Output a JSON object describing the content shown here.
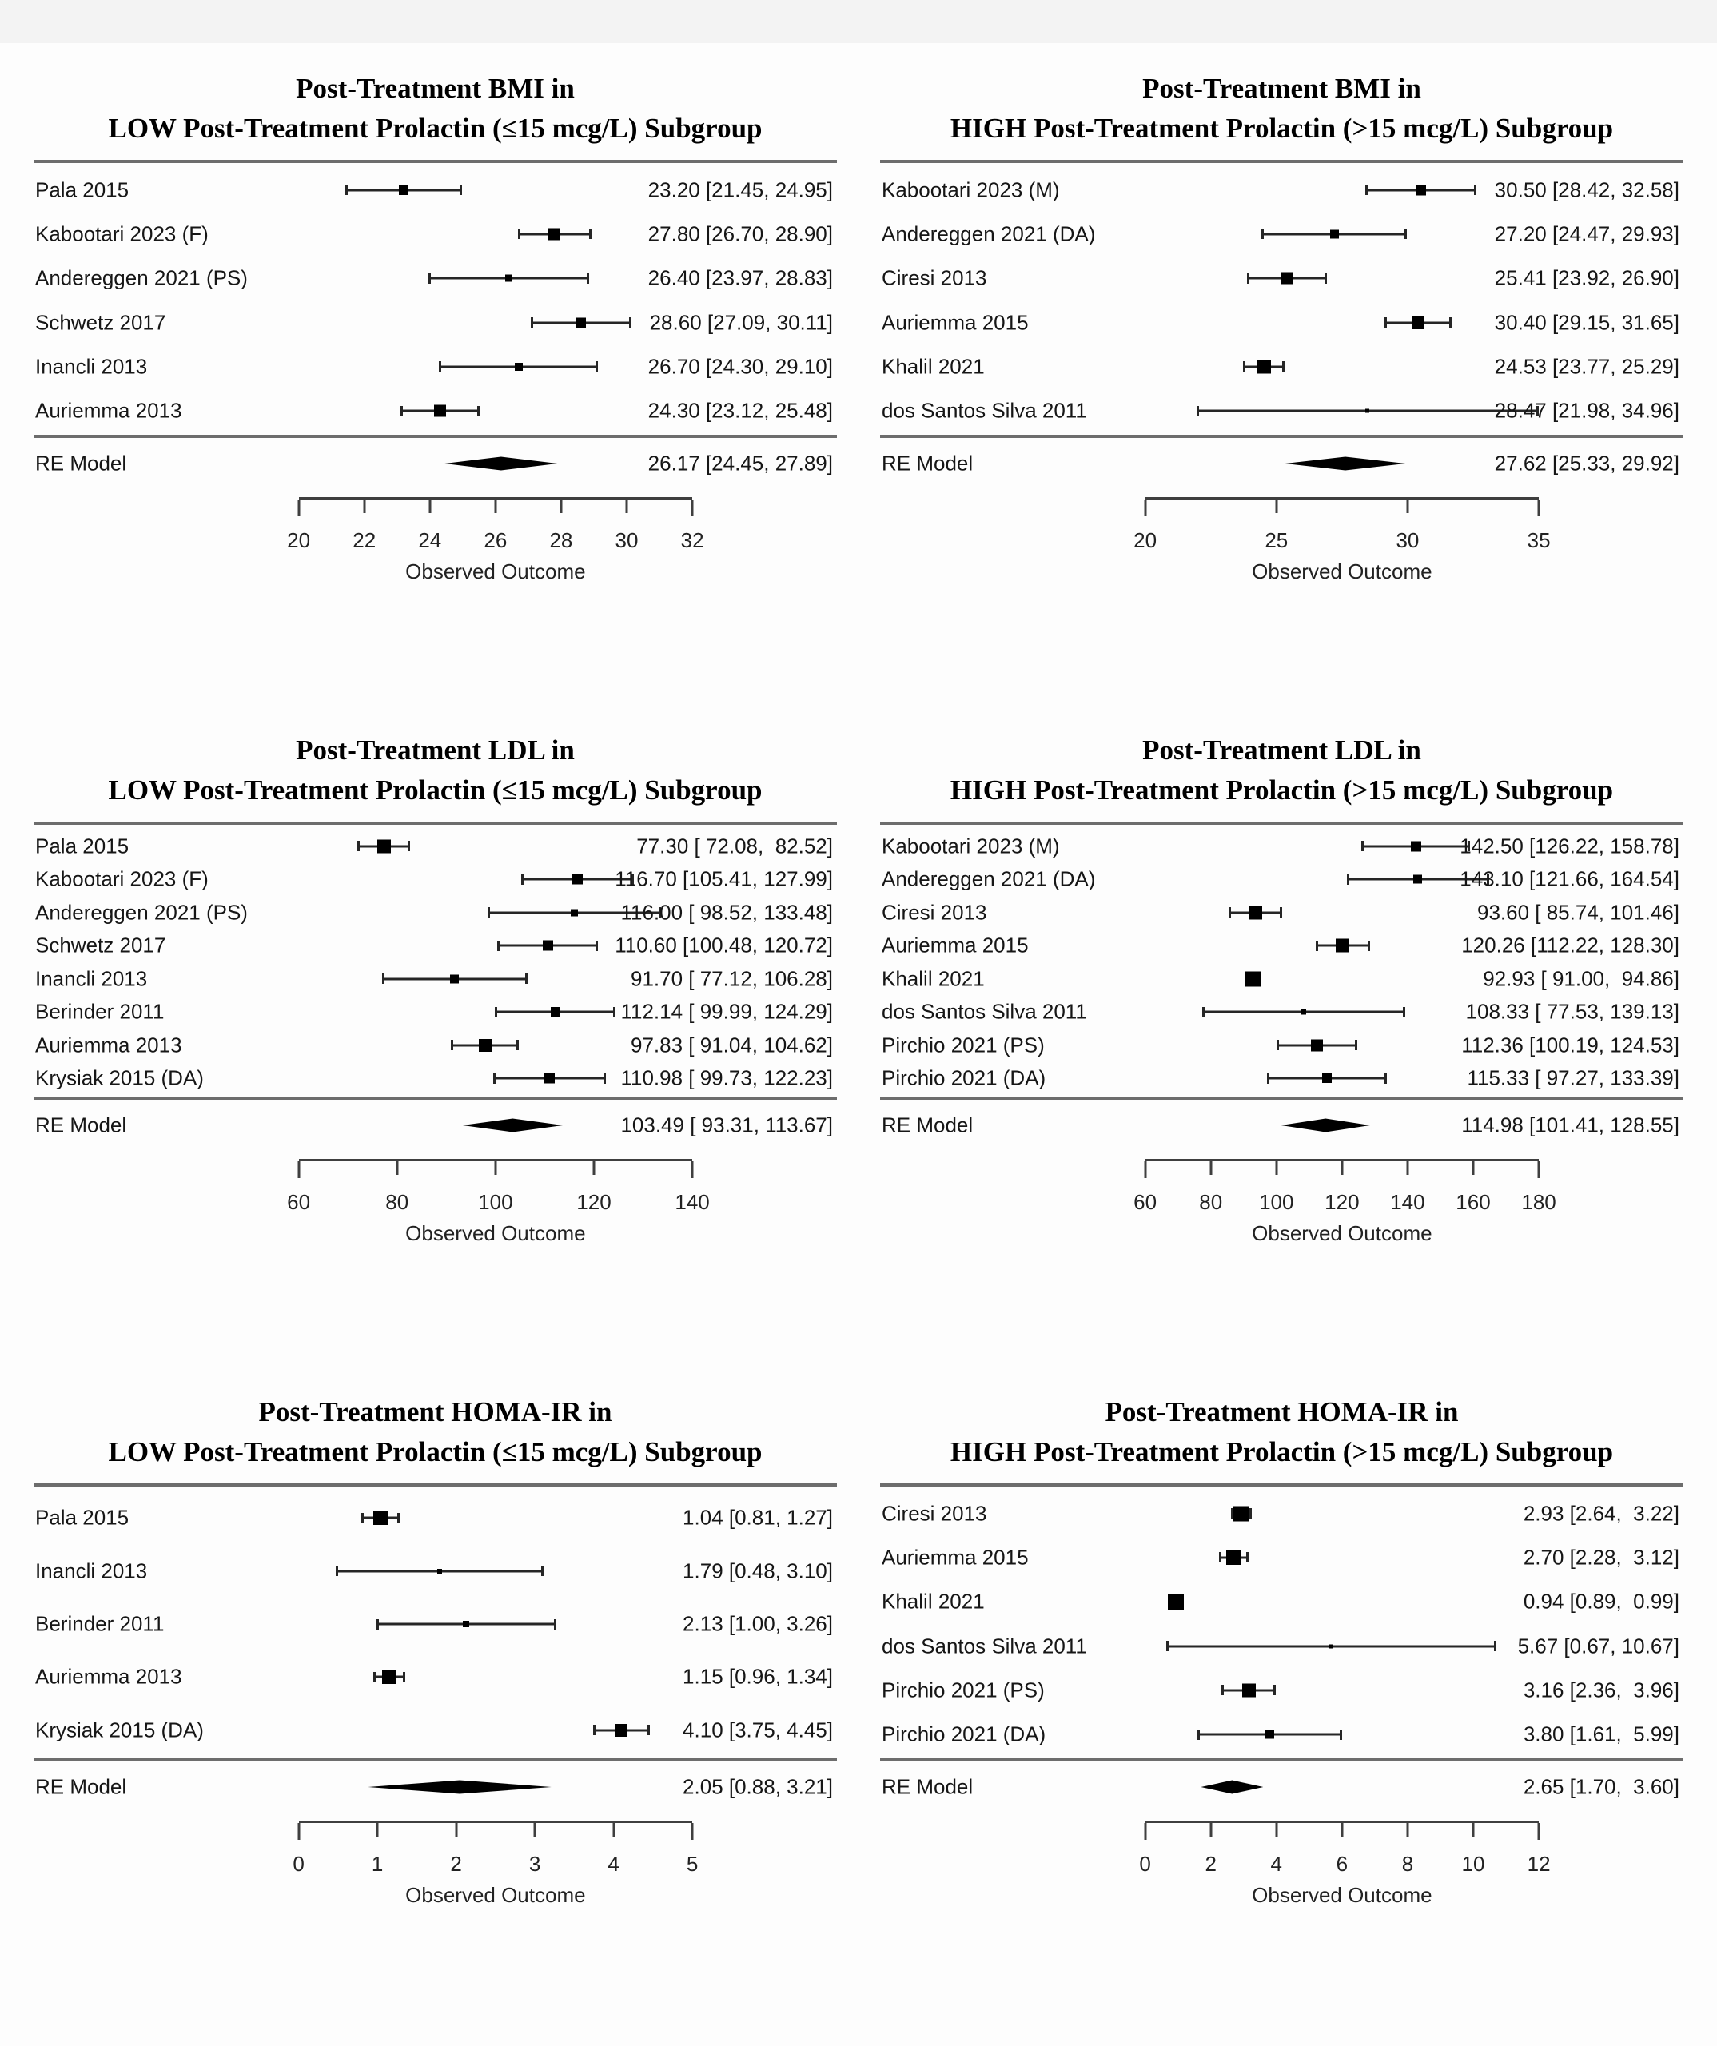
{
  "page": {
    "background": "#fdfdfd",
    "top_band_color": "#f3f3f3"
  },
  "chart_data": [
    {
      "id": "bmi-low",
      "type": "forest",
      "title_line1": "Post-Treatment BMI in",
      "title_line2": "LOW Post-Treatment Prolactin (≤15 mcg/L) Subgroup",
      "xlabel": "Observed Outcome",
      "axis": {
        "min": 20,
        "max": 32,
        "ticks": [
          20,
          22,
          24,
          26,
          28,
          30,
          32
        ]
      },
      "studies": [
        {
          "label": "Pala 2015",
          "est": 23.2,
          "lo": 21.45,
          "hi": 24.95,
          "annotation": "23.20 [21.45, 24.95]"
        },
        {
          "label": "Kabootari 2023 (F)",
          "est": 27.8,
          "lo": 26.7,
          "hi": 28.9,
          "annotation": "27.80 [26.70, 28.90]"
        },
        {
          "label": "Andereggen 2021 (PS)",
          "est": 26.4,
          "lo": 23.97,
          "hi": 28.83,
          "annotation": "26.40 [23.97, 28.83]"
        },
        {
          "label": "Schwetz 2017",
          "est": 28.6,
          "lo": 27.09,
          "hi": 30.11,
          "annotation": "28.60 [27.09, 30.11]"
        },
        {
          "label": "Inancli 2013",
          "est": 26.7,
          "lo": 24.3,
          "hi": 29.1,
          "annotation": "26.70 [24.30, 29.10]"
        },
        {
          "label": "Auriemma 2013",
          "est": 24.3,
          "lo": 23.12,
          "hi": 25.48,
          "annotation": "24.30 [23.12, 25.48]"
        }
      ],
      "re_model": {
        "label": "RE Model",
        "est": 26.17,
        "lo": 24.45,
        "hi": 27.89,
        "annotation": "26.17 [24.45, 27.89]"
      }
    },
    {
      "id": "bmi-high",
      "type": "forest",
      "title_line1": "Post-Treatment BMI in",
      "title_line2": "HIGH Post-Treatment Prolactin (>15 mcg/L) Subgroup",
      "xlabel": "Observed Outcome",
      "axis": {
        "min": 20,
        "max": 35,
        "ticks": [
          20,
          25,
          30,
          35
        ]
      },
      "studies": [
        {
          "label": "Kabootari 2023 (M)",
          "est": 30.5,
          "lo": 28.42,
          "hi": 32.58,
          "annotation": "30.50 [28.42, 32.58]"
        },
        {
          "label": "Andereggen 2021 (DA)",
          "est": 27.2,
          "lo": 24.47,
          "hi": 29.93,
          "annotation": "27.20 [24.47, 29.93]"
        },
        {
          "label": "Ciresi 2013",
          "est": 25.41,
          "lo": 23.92,
          "hi": 26.9,
          "annotation": "25.41 [23.92, 26.90]"
        },
        {
          "label": "Auriemma 2015",
          "est": 30.4,
          "lo": 29.15,
          "hi": 31.65,
          "annotation": "30.40 [29.15, 31.65]"
        },
        {
          "label": "Khalil 2021",
          "est": 24.53,
          "lo": 23.77,
          "hi": 25.29,
          "annotation": "24.53 [23.77, 25.29]"
        },
        {
          "label": "dos Santos Silva 2011",
          "est": 28.47,
          "lo": 21.98,
          "hi": 34.96,
          "annotation": "28.47 [21.98, 34.96]"
        }
      ],
      "re_model": {
        "label": "RE Model",
        "est": 27.62,
        "lo": 25.33,
        "hi": 29.92,
        "annotation": "27.62 [25.33, 29.92]"
      }
    },
    {
      "id": "ldl-low",
      "type": "forest",
      "title_line1": "Post-Treatment LDL in",
      "title_line2": "LOW Post-Treatment Prolactin (≤15 mcg/L) Subgroup",
      "xlabel": "Observed Outcome",
      "axis": {
        "min": 60,
        "max": 140,
        "ticks": [
          60,
          80,
          100,
          120,
          140
        ]
      },
      "studies": [
        {
          "label": "Pala 2015",
          "est": 77.3,
          "lo": 72.08,
          "hi": 82.52,
          "annotation": "77.30 [ 72.08,  82.52]"
        },
        {
          "label": "Kabootari 2023 (F)",
          "est": 116.7,
          "lo": 105.41,
          "hi": 127.99,
          "annotation": "116.70 [105.41, 127.99]"
        },
        {
          "label": "Andereggen 2021 (PS)",
          "est": 116.0,
          "lo": 98.52,
          "hi": 133.48,
          "annotation": "116.00 [ 98.52, 133.48]"
        },
        {
          "label": "Schwetz 2017",
          "est": 110.6,
          "lo": 100.48,
          "hi": 120.72,
          "annotation": "110.60 [100.48, 120.72]"
        },
        {
          "label": "Inancli 2013",
          "est": 91.7,
          "lo": 77.12,
          "hi": 106.28,
          "annotation": "91.70 [ 77.12, 106.28]"
        },
        {
          "label": "Berinder 2011",
          "est": 112.14,
          "lo": 99.99,
          "hi": 124.29,
          "annotation": "112.14 [ 99.99, 124.29]"
        },
        {
          "label": "Auriemma 2013",
          "est": 97.83,
          "lo": 91.04,
          "hi": 104.62,
          "annotation": "97.83 [ 91.04, 104.62]"
        },
        {
          "label": "Krysiak 2015 (DA)",
          "est": 110.98,
          "lo": 99.73,
          "hi": 122.23,
          "annotation": "110.98 [ 99.73, 122.23]"
        }
      ],
      "re_model": {
        "label": "RE Model",
        "est": 103.49,
        "lo": 93.31,
        "hi": 113.67,
        "annotation": "103.49 [ 93.31, 113.67]"
      }
    },
    {
      "id": "ldl-high",
      "type": "forest",
      "title_line1": "Post-Treatment LDL in",
      "title_line2": "HIGH Post-Treatment Prolactin (>15 mcg/L) Subgroup",
      "xlabel": "Observed Outcome",
      "axis": {
        "min": 60,
        "max": 180,
        "ticks": [
          60,
          80,
          100,
          120,
          140,
          160,
          180
        ]
      },
      "studies": [
        {
          "label": "Kabootari 2023 (M)",
          "est": 142.5,
          "lo": 126.22,
          "hi": 158.78,
          "annotation": "142.50 [126.22, 158.78]"
        },
        {
          "label": "Andereggen 2021 (DA)",
          "est": 143.1,
          "lo": 121.66,
          "hi": 164.54,
          "annotation": "143.10 [121.66, 164.54]"
        },
        {
          "label": "Ciresi 2013",
          "est": 93.6,
          "lo": 85.74,
          "hi": 101.46,
          "annotation": "93.60 [ 85.74, 101.46]"
        },
        {
          "label": "Auriemma 2015",
          "est": 120.26,
          "lo": 112.22,
          "hi": 128.3,
          "annotation": "120.26 [112.22, 128.30]"
        },
        {
          "label": "Khalil 2021",
          "est": 92.93,
          "lo": 91.0,
          "hi": 94.86,
          "annotation": "92.93 [ 91.00,  94.86]"
        },
        {
          "label": "dos Santos Silva 2011",
          "est": 108.33,
          "lo": 77.53,
          "hi": 139.13,
          "annotation": "108.33 [ 77.53, 139.13]"
        },
        {
          "label": "Pirchio 2021 (PS)",
          "est": 112.36,
          "lo": 100.19,
          "hi": 124.53,
          "annotation": "112.36 [100.19, 124.53]"
        },
        {
          "label": "Pirchio 2021 (DA)",
          "est": 115.33,
          "lo": 97.27,
          "hi": 133.39,
          "annotation": "115.33 [ 97.27, 133.39]"
        }
      ],
      "re_model": {
        "label": "RE Model",
        "est": 114.98,
        "lo": 101.41,
        "hi": 128.55,
        "annotation": "114.98 [101.41, 128.55]"
      }
    },
    {
      "id": "homa-low",
      "type": "forest",
      "title_line1": "Post-Treatment HOMA-IR in",
      "title_line2": "LOW Post-Treatment Prolactin (≤15 mcg/L) Subgroup",
      "xlabel": "Observed Outcome",
      "axis": {
        "min": 0,
        "max": 5,
        "ticks": [
          0,
          1,
          2,
          3,
          4,
          5
        ]
      },
      "studies": [
        {
          "label": "Pala 2015",
          "est": 1.04,
          "lo": 0.81,
          "hi": 1.27,
          "annotation": "1.04 [0.81, 1.27]"
        },
        {
          "label": "Inancli 2013",
          "est": 1.79,
          "lo": 0.48,
          "hi": 3.1,
          "annotation": "1.79 [0.48, 3.10]"
        },
        {
          "label": "Berinder 2011",
          "est": 2.13,
          "lo": 1.0,
          "hi": 3.26,
          "annotation": "2.13 [1.00, 3.26]"
        },
        {
          "label": "Auriemma 2013",
          "est": 1.15,
          "lo": 0.96,
          "hi": 1.34,
          "annotation": "1.15 [0.96, 1.34]"
        },
        {
          "label": "Krysiak 2015 (DA)",
          "est": 4.1,
          "lo": 3.75,
          "hi": 4.45,
          "annotation": "4.10 [3.75, 4.45]"
        }
      ],
      "re_model": {
        "label": "RE Model",
        "est": 2.05,
        "lo": 0.88,
        "hi": 3.21,
        "annotation": "2.05 [0.88, 3.21]"
      }
    },
    {
      "id": "homa-high",
      "type": "forest",
      "title_line1": "Post-Treatment HOMA-IR in",
      "title_line2": "HIGH Post-Treatment Prolactin (>15 mcg/L) Subgroup",
      "xlabel": "Observed Outcome",
      "axis": {
        "min": 0,
        "max": 12,
        "ticks": [
          0,
          2,
          4,
          6,
          8,
          10,
          12
        ]
      },
      "studies": [
        {
          "label": "Ciresi 2013",
          "est": 2.93,
          "lo": 2.64,
          "hi": 3.22,
          "annotation": "2.93 [2.64,  3.22]"
        },
        {
          "label": "Auriemma 2015",
          "est": 2.7,
          "lo": 2.28,
          "hi": 3.12,
          "annotation": "2.70 [2.28,  3.12]"
        },
        {
          "label": "Khalil 2021",
          "est": 0.94,
          "lo": 0.89,
          "hi": 0.99,
          "annotation": "0.94 [0.89,  0.99]"
        },
        {
          "label": "dos Santos Silva 2011",
          "est": 5.67,
          "lo": 0.67,
          "hi": 10.67,
          "annotation": "5.67 [0.67, 10.67]"
        },
        {
          "label": "Pirchio 2021 (PS)",
          "est": 3.16,
          "lo": 2.36,
          "hi": 3.96,
          "annotation": "3.16 [2.36,  3.96]"
        },
        {
          "label": "Pirchio 2021 (DA)",
          "est": 3.8,
          "lo": 1.61,
          "hi": 5.99,
          "annotation": "3.80 [1.61,  5.99]"
        }
      ],
      "re_model": {
        "label": "RE Model",
        "est": 2.65,
        "lo": 1.7,
        "hi": 3.6,
        "annotation": "2.65 [1.70,  3.60]"
      }
    }
  ]
}
